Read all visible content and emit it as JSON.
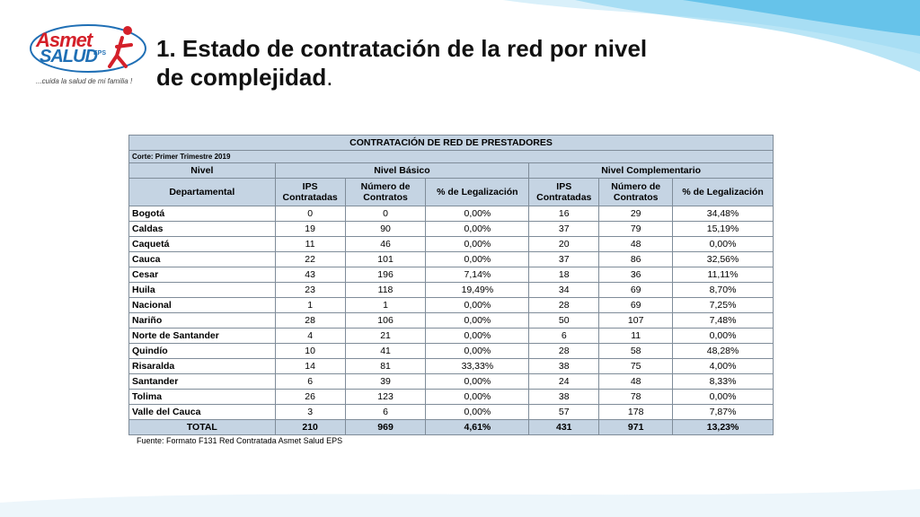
{
  "logo": {
    "top": "Asmet",
    "bottom": "SALUD",
    "eps": "EPS",
    "tagline": "...cuida la salud de mi familia !"
  },
  "title": {
    "line1": "1. Estado de contratación de la red por nivel",
    "line2": "de complejidad",
    "dot": "."
  },
  "table": {
    "caption": "CONTRATACIÓN DE RED DE PRESTADORES",
    "cut": "Corte: Primer Trimestre 2019",
    "level_label": "Nivel",
    "group1": "Nivel Básico",
    "group2": "Nivel Complementario",
    "col_dep": "Departamental",
    "col_ips": "IPS Contratadas",
    "col_num": "Número de Contratos",
    "col_pct": "% de Legalización",
    "rows": [
      [
        "Bogotá",
        "0",
        "0",
        "0,00%",
        "16",
        "29",
        "34,48%"
      ],
      [
        "Caldas",
        "19",
        "90",
        "0,00%",
        "37",
        "79",
        "15,19%"
      ],
      [
        "Caquetá",
        "11",
        "46",
        "0,00%",
        "20",
        "48",
        "0,00%"
      ],
      [
        "Cauca",
        "22",
        "101",
        "0,00%",
        "37",
        "86",
        "32,56%"
      ],
      [
        "Cesar",
        "43",
        "196",
        "7,14%",
        "18",
        "36",
        "11,11%"
      ],
      [
        "Huila",
        "23",
        "118",
        "19,49%",
        "34",
        "69",
        "8,70%"
      ],
      [
        "Nacional",
        "1",
        "1",
        "0,00%",
        "28",
        "69",
        "7,25%"
      ],
      [
        "Nariño",
        "28",
        "106",
        "0,00%",
        "50",
        "107",
        "7,48%"
      ],
      [
        "Norte de Santander",
        "4",
        "21",
        "0,00%",
        "6",
        "11",
        "0,00%"
      ],
      [
        "Quindío",
        "10",
        "41",
        "0,00%",
        "28",
        "58",
        "48,28%"
      ],
      [
        "Risaralda",
        "14",
        "81",
        "33,33%",
        "38",
        "75",
        "4,00%"
      ],
      [
        "Santander",
        "6",
        "39",
        "0,00%",
        "24",
        "48",
        "8,33%"
      ],
      [
        "Tolima",
        "26",
        "123",
        "0,00%",
        "38",
        "78",
        "0,00%"
      ],
      [
        "Valle del Cauca",
        "3",
        "6",
        "0,00%",
        "57",
        "178",
        "7,87%"
      ]
    ],
    "total": [
      "TOTAL",
      "210",
      "969",
      "4,61%",
      "431",
      "971",
      "13,23%"
    ]
  },
  "source": "Fuente: Formato F131 Red Contratada Asmet Salud EPS",
  "colors": {
    "header_bg": "#c5d4e3",
    "wave": "#4ab8e6",
    "logo_red": "#d4202a",
    "logo_blue": "#1f6fb5"
  }
}
